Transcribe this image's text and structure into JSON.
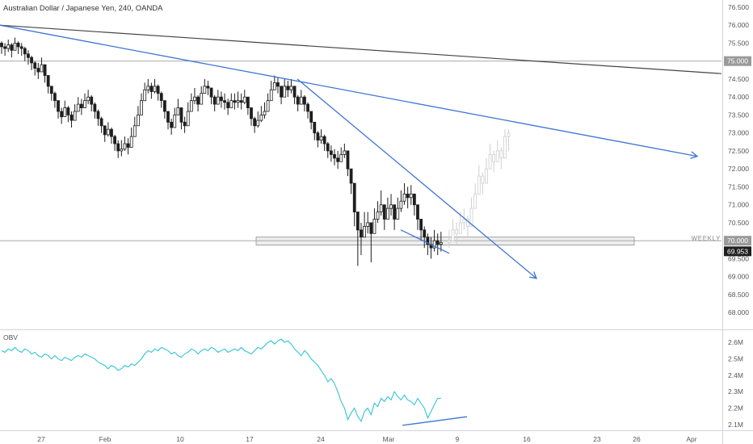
{
  "header": {
    "title": "Australian Dollar / Japanese Yen, 240, OANDA"
  },
  "annotations": {
    "weekly_label": "WEEKLY"
  },
  "colors": {
    "candle": "#1e1e1e",
    "projection": "#cfcfcf",
    "trendline_blue": "#3e74d4",
    "trendline_dark": "#444444",
    "obv": "#33c4d6",
    "level_line": "#9e9e9e",
    "zone_fill": "#eeeeee",
    "price_tag": "#1e1e1e"
  },
  "chart_data": [
    {
      "type": "candlestick",
      "title": "Australian Dollar / Japanese Yen, 240, OANDA",
      "ylim": [
        67.6,
        76.7
      ],
      "y_ticks": [
        "68.000",
        "68.500",
        "69.000",
        "69.500",
        "70.000",
        "70.500",
        "71.000",
        "71.500",
        "72.000",
        "72.500",
        "73.000",
        "73.500",
        "74.000",
        "74.500",
        "75.000",
        "75.500",
        "76.000",
        "76.500"
      ],
      "x_ticks": [
        "27",
        "Feb",
        "10",
        "17",
        "24",
        "Mar",
        "9",
        "16",
        "23",
        "26",
        "Apr"
      ],
      "last_price": "69.953",
      "level_tags": [
        "75.000",
        "70.000"
      ],
      "closes": [
        75.4,
        75.35,
        75.45,
        75.3,
        75.5,
        75.4,
        75.35,
        75.2,
        75.1,
        74.95,
        74.8,
        74.7,
        74.9,
        74.6,
        74.3,
        74.1,
        73.9,
        73.6,
        73.45,
        73.7,
        73.5,
        73.35,
        73.6,
        73.8,
        73.7,
        73.9,
        74.0,
        73.8,
        73.6,
        73.4,
        73.2,
        72.95,
        73.1,
        72.9,
        72.7,
        72.5,
        72.55,
        72.7,
        72.6,
        72.9,
        73.2,
        73.5,
        73.9,
        74.2,
        74.3,
        74.15,
        74.3,
        74.1,
        73.9,
        73.6,
        73.3,
        73.15,
        73.5,
        73.7,
        73.3,
        73.2,
        73.6,
        73.9,
        74.0,
        73.8,
        74.1,
        74.3,
        74.25,
        74.0,
        73.8,
        74.0,
        73.9,
        73.85,
        73.7,
        73.9,
        73.85,
        73.9,
        73.85,
        74.0,
        73.7,
        73.4,
        73.2,
        73.35,
        73.5,
        73.6,
        73.9,
        74.2,
        74.4,
        74.3,
        74.0,
        74.3,
        74.2,
        74.3,
        74.0,
        73.8,
        74.0,
        73.8,
        73.6,
        73.3,
        73.0,
        72.8,
        72.9,
        72.7,
        72.5,
        72.4,
        72.3,
        72.2,
        72.4,
        72.5,
        72.0,
        71.6,
        70.8,
        70.3,
        70.1,
        70.4,
        70.5,
        70.2,
        70.6,
        70.8,
        71.0,
        70.6,
        70.9,
        71.0,
        70.6,
        70.9,
        71.1,
        71.3,
        71.2,
        71.3,
        71.0,
        70.6,
        70.3,
        70.1,
        69.9,
        69.8,
        70.0,
        69.9,
        69.95
      ],
      "highs": [
        75.55,
        75.5,
        75.6,
        75.5,
        75.65,
        75.55,
        75.5,
        75.4,
        75.3,
        75.15,
        75.0,
        74.95,
        75.1,
        74.85,
        74.5,
        74.3,
        74.15,
        73.85,
        73.7,
        73.9,
        73.75,
        73.6,
        73.8,
        74.0,
        73.95,
        74.1,
        74.2,
        74.05,
        73.85,
        73.65,
        73.45,
        73.2,
        73.3,
        73.15,
        72.95,
        72.8,
        72.8,
        72.9,
        72.85,
        73.15,
        73.45,
        73.75,
        74.1,
        74.4,
        74.5,
        74.4,
        74.5,
        74.35,
        74.15,
        73.85,
        73.55,
        73.4,
        73.7,
        73.95,
        73.55,
        73.45,
        73.85,
        74.1,
        74.25,
        74.05,
        74.3,
        74.5,
        74.45,
        74.25,
        74.05,
        74.2,
        74.15,
        74.1,
        73.95,
        74.1,
        74.1,
        74.15,
        74.1,
        74.2,
        73.95,
        73.65,
        73.45,
        73.6,
        73.75,
        73.85,
        74.1,
        74.45,
        74.6,
        74.55,
        74.3,
        74.5,
        74.45,
        74.5,
        74.25,
        74.05,
        74.2,
        74.05,
        73.85,
        73.55,
        73.25,
        73.05,
        73.1,
        72.95,
        72.75,
        72.65,
        72.55,
        72.5,
        72.6,
        72.7,
        72.3,
        71.9,
        71.2,
        70.7,
        70.5,
        70.8,
        70.8,
        70.5,
        70.9,
        71.1,
        71.4,
        71.0,
        71.2,
        71.3,
        70.9,
        71.2,
        71.4,
        71.6,
        71.5,
        71.55,
        71.3,
        70.9,
        70.6,
        70.4,
        70.2,
        70.1,
        70.3,
        70.2,
        70.25
      ],
      "lows": [
        75.2,
        75.15,
        75.25,
        75.1,
        75.3,
        75.2,
        75.15,
        75.0,
        74.9,
        74.75,
        74.6,
        74.5,
        74.7,
        74.4,
        74.1,
        73.9,
        73.7,
        73.4,
        73.25,
        73.5,
        73.3,
        73.15,
        73.4,
        73.6,
        73.5,
        73.7,
        73.8,
        73.6,
        73.4,
        73.2,
        73.0,
        72.75,
        72.9,
        72.7,
        72.5,
        72.3,
        72.35,
        72.5,
        72.4,
        72.7,
        73.0,
        73.3,
        73.7,
        74.0,
        74.1,
        73.95,
        74.1,
        73.9,
        73.7,
        73.4,
        73.1,
        72.95,
        73.3,
        73.5,
        73.1,
        73.0,
        73.4,
        73.7,
        73.8,
        73.6,
        73.9,
        74.1,
        74.05,
        73.8,
        73.6,
        73.8,
        73.7,
        73.65,
        73.5,
        73.7,
        73.65,
        73.7,
        73.65,
        73.8,
        73.5,
        73.2,
        73.0,
        73.15,
        73.3,
        73.4,
        73.7,
        74.0,
        74.2,
        74.1,
        73.8,
        74.1,
        74.0,
        74.1,
        73.8,
        73.6,
        73.8,
        73.6,
        73.4,
        73.1,
        72.8,
        72.6,
        72.7,
        72.5,
        72.3,
        72.2,
        72.1,
        72.0,
        72.2,
        72.3,
        71.8,
        71.3,
        70.4,
        69.3,
        69.6,
        70.1,
        70.2,
        69.4,
        70.3,
        70.5,
        70.7,
        70.3,
        70.6,
        70.7,
        70.3,
        70.6,
        70.8,
        71.0,
        70.9,
        71.0,
        70.7,
        70.3,
        70.0,
        69.8,
        69.6,
        69.5,
        69.7,
        69.6,
        69.7
      ],
      "projection": {
        "closes": [
          70.0,
          70.3,
          70.2,
          70.5,
          70.6,
          70.4,
          70.9,
          71.3,
          71.8,
          71.6,
          72.0,
          72.4,
          72.2,
          72.5,
          72.3,
          72.9,
          73.0
        ],
        "highs": [
          70.3,
          70.6,
          70.5,
          70.8,
          70.9,
          70.7,
          71.2,
          71.6,
          72.1,
          71.9,
          72.3,
          72.7,
          72.5,
          72.8,
          72.6,
          73.1,
          73.1
        ],
        "lows": [
          69.8,
          70.0,
          69.9,
          70.2,
          70.3,
          70.1,
          70.6,
          71.0,
          71.5,
          71.3,
          71.7,
          72.1,
          71.9,
          72.2,
          72.0,
          72.5,
          72.5
        ]
      }
    },
    {
      "type": "line",
      "title": "OBV",
      "ylim": [
        2.08,
        2.66
      ],
      "y_ticks": [
        "2.1M",
        "2.2M",
        "2.3M",
        "2.4M",
        "2.5M",
        "2.6M"
      ],
      "series": [
        {
          "values": [
            2.55,
            2.54,
            2.56,
            2.55,
            2.57,
            2.55,
            2.54,
            2.56,
            2.55,
            2.53,
            2.54,
            2.52,
            2.51,
            2.53,
            2.52,
            2.5,
            2.52,
            2.5,
            2.49,
            2.51,
            2.5,
            2.49,
            2.51,
            2.52,
            2.51,
            2.53,
            2.52,
            2.51,
            2.5,
            2.48,
            2.47,
            2.46,
            2.44,
            2.46,
            2.45,
            2.43,
            2.44,
            2.46,
            2.45,
            2.47,
            2.46,
            2.48,
            2.5,
            2.53,
            2.55,
            2.54,
            2.56,
            2.55,
            2.57,
            2.56,
            2.55,
            2.53,
            2.54,
            2.52,
            2.51,
            2.53,
            2.54,
            2.56,
            2.55,
            2.53,
            2.55,
            2.56,
            2.55,
            2.57,
            2.56,
            2.54,
            2.55,
            2.56,
            2.54,
            2.55,
            2.56,
            2.55,
            2.57,
            2.55,
            2.54,
            2.53,
            2.55,
            2.57,
            2.56,
            2.58,
            2.6,
            2.61,
            2.59,
            2.61,
            2.62,
            2.6,
            2.61,
            2.59,
            2.56,
            2.54,
            2.52,
            2.55,
            2.53,
            2.5,
            2.48,
            2.46,
            2.43,
            2.4,
            2.36,
            2.38,
            2.35,
            2.3,
            2.24,
            2.2,
            2.13,
            2.17,
            2.2,
            2.15,
            2.12,
            2.18,
            2.2,
            2.16,
            2.23,
            2.21,
            2.26,
            2.24,
            2.27,
            2.25,
            2.3,
            2.27,
            2.25,
            2.28,
            2.25,
            2.24,
            2.22,
            2.26,
            2.23,
            2.2,
            2.14,
            2.18,
            2.22,
            2.26,
            2.26
          ]
        }
      ]
    }
  ]
}
